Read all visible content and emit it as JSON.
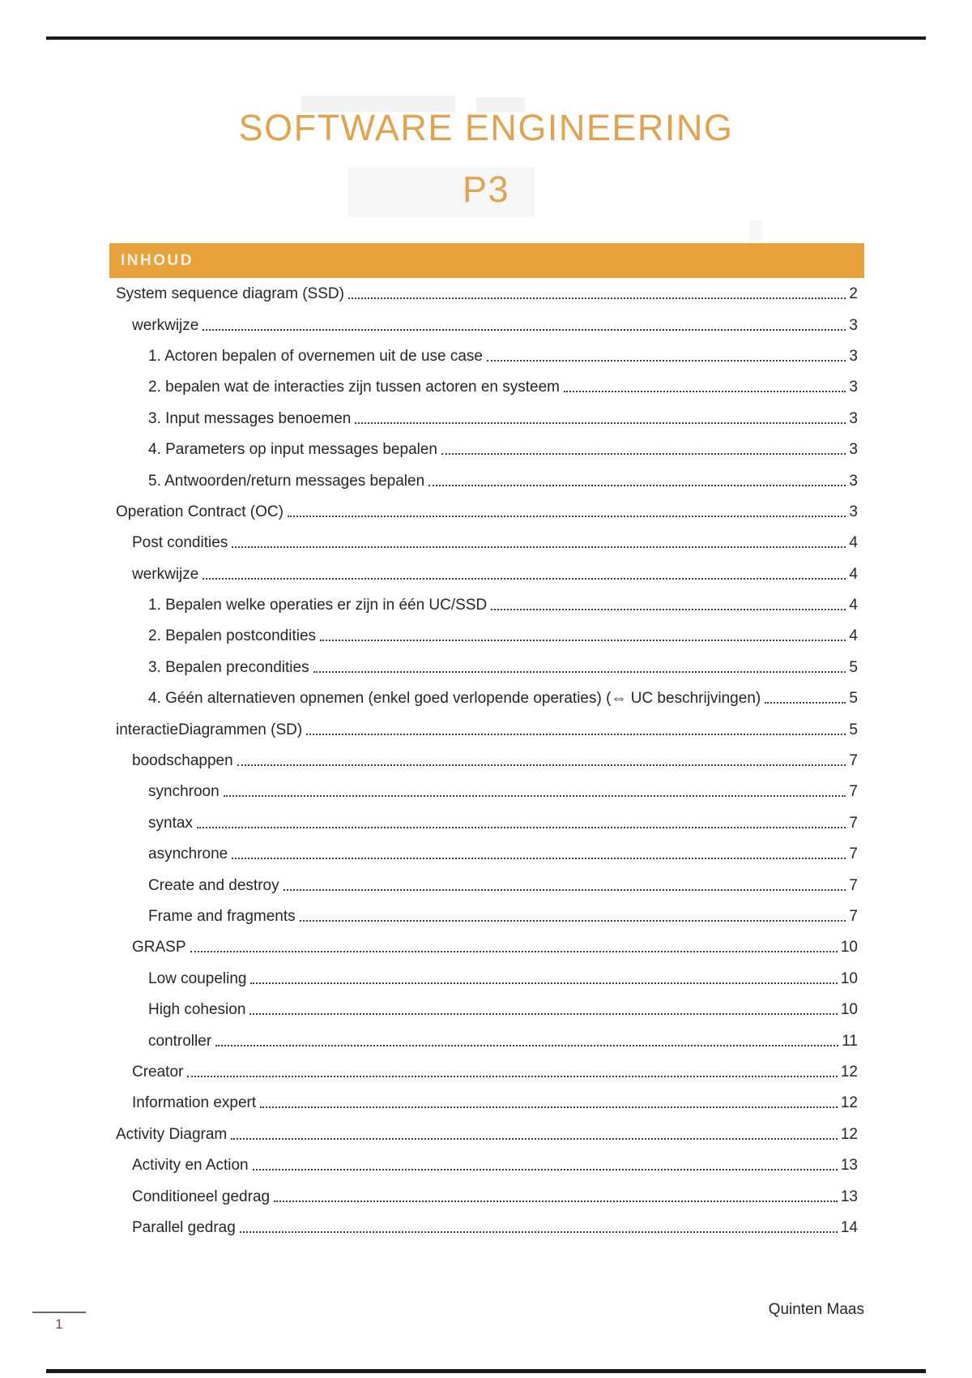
{
  "colors": {
    "accent": "#E8A23C",
    "title": "#E0A350",
    "text": "#262626",
    "page-number": "#7C4A4A",
    "rule": "#1A1A1A"
  },
  "header": {
    "title_line1": "SOFTWARE ENGINEERING",
    "title_line2": "P3"
  },
  "toc": {
    "heading": "INHOUD",
    "entries": [
      {
        "label": "System sequence diagram (SSD)",
        "page": "2",
        "level": 1
      },
      {
        "label": "werkwijze",
        "page": "3",
        "level": 2
      },
      {
        "label": "1. Actoren bepalen of overnemen uit de use case",
        "page": "3",
        "level": 3
      },
      {
        "label": "2. bepalen wat de interacties zijn tussen actoren en systeem",
        "page": "3",
        "level": 3
      },
      {
        "label": "3. Input messages benoemen",
        "page": "3",
        "level": 3
      },
      {
        "label": "4. Parameters op input messages bepalen",
        "page": "3",
        "level": 3
      },
      {
        "label": "5. Antwoorden/return messages bepalen",
        "page": "3",
        "level": 3
      },
      {
        "label": "Operation Contract (OC)",
        "page": "3",
        "level": 1
      },
      {
        "label": "Post condities",
        "page": "4",
        "level": 2
      },
      {
        "label": "werkwijze",
        "page": "4",
        "level": 2
      },
      {
        "label": "1. Bepalen welke operaties er zijn in één UC/SSD",
        "page": "4",
        "level": 3
      },
      {
        "label": "2. Bepalen postcondities",
        "page": "4",
        "level": 3
      },
      {
        "label": "3. Bepalen precondities",
        "page": "5",
        "level": 3
      },
      {
        "label": "4. Géén alternatieven opnemen (enkel goed verlopende operaties) (⇔ UC beschrijvingen)",
        "page": "5",
        "level": 3
      },
      {
        "label": "interactieDiagrammen (SD)",
        "page": "5",
        "level": 1
      },
      {
        "label": "boodschappen",
        "page": "7",
        "level": 2
      },
      {
        "label": "synchroon",
        "page": "7",
        "level": 3
      },
      {
        "label": "syntax",
        "page": "7",
        "level": 3
      },
      {
        "label": "asynchrone",
        "page": "7",
        "level": 3
      },
      {
        "label": "Create and destroy",
        "page": "7",
        "level": 3
      },
      {
        "label": "Frame and fragments",
        "page": "7",
        "level": 3
      },
      {
        "label": "GRASP",
        "page": "10",
        "level": 2
      },
      {
        "label": "Low coupeling",
        "page": "10",
        "level": 3
      },
      {
        "label": "High cohesion",
        "page": "10",
        "level": 3
      },
      {
        "label": "controller",
        "page": "11",
        "level": 3
      },
      {
        "label": "Creator",
        "page": "12",
        "level": 2
      },
      {
        "label": "Information expert",
        "page": "12",
        "level": 2
      },
      {
        "label": "Activity Diagram",
        "page": "12",
        "level": 1
      },
      {
        "label": "Activity en Action",
        "page": "13",
        "level": 2
      },
      {
        "label": "Conditioneel gedrag",
        "page": "13",
        "level": 2
      },
      {
        "label": "Parallel gedrag",
        "page": "14",
        "level": 2
      }
    ]
  },
  "footer": {
    "author": "Quinten Maas",
    "page_number": "1"
  }
}
